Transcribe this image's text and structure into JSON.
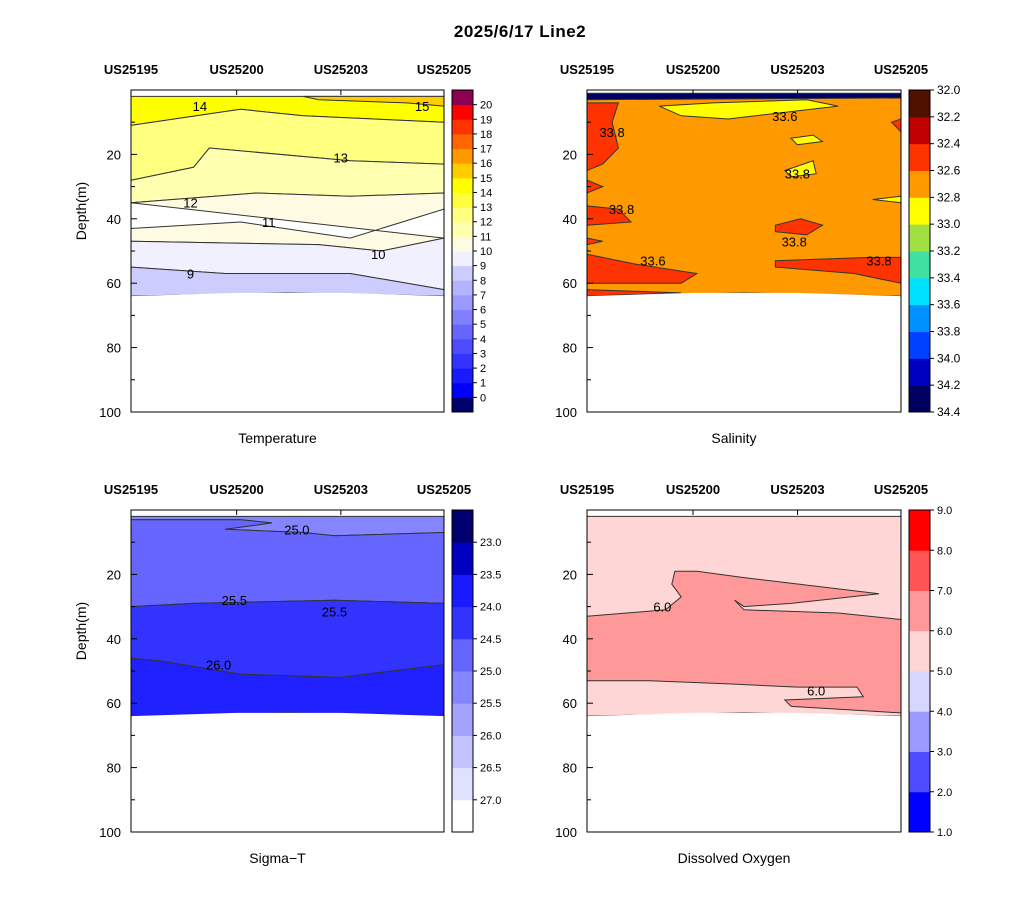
{
  "page_title": "2025/6/17  Line2",
  "chart_data": [
    {
      "type": "contour",
      "title": "Temperature",
      "ylabel": "Depth(m)",
      "ylim": [
        100,
        0
      ],
      "yticks": [
        20,
        40,
        60,
        80,
        100
      ],
      "stations": [
        "US25195",
        "US25200",
        "US25203",
        "US25205"
      ],
      "bottom_depth_m": [
        64,
        63,
        63,
        64
      ],
      "colorbar": {
        "levels": [
          0,
          1,
          2,
          3,
          4,
          5,
          6,
          7,
          8,
          9,
          10,
          11,
          12,
          13,
          14,
          15,
          16,
          17,
          18,
          19,
          20
        ],
        "tick_labels": [
          "0",
          "1",
          "2",
          "3",
          "4",
          "5",
          "6",
          "7",
          "8",
          "9",
          "10",
          "11",
          "12",
          "13",
          "14",
          "15",
          "16",
          "17",
          "18",
          "19",
          "20"
        ],
        "colors": [
          "#00006e",
          "#0000ff",
          "#1a1aff",
          "#3333ff",
          "#4d4dff",
          "#6666ff",
          "#8080ff",
          "#9999ff",
          "#b3b3ff",
          "#ccccff",
          "#f0f0ff",
          "#fffbe3",
          "#ffffb0",
          "#ffff80",
          "#ffff40",
          "#ffff00",
          "#ffcc00",
          "#ff9900",
          "#ff6600",
          "#ff3300",
          "#ff0000",
          "#8b0050"
        ]
      },
      "contour_labels": [
        "14",
        "15",
        "13",
        "12",
        "11",
        "10",
        "9"
      ]
    },
    {
      "type": "contour",
      "title": "Salinity",
      "ylabel": "",
      "ylim": [
        100,
        0
      ],
      "yticks": [
        20,
        40,
        60,
        80,
        100
      ],
      "stations": [
        "US25195",
        "US25200",
        "US25203",
        "US25205"
      ],
      "bottom_depth_m": [
        64,
        63,
        63,
        64
      ],
      "colorbar": {
        "levels": [
          32.0,
          32.2,
          32.4,
          32.6,
          32.8,
          33.0,
          33.2,
          33.4,
          33.6,
          33.8,
          34.0,
          34.2,
          34.4
        ],
        "tick_labels": [
          "32.0",
          "32.2",
          "32.4",
          "32.6",
          "32.8",
          "33.0",
          "33.2",
          "33.4",
          "33.6",
          "33.8",
          "34.0",
          "34.2",
          "34.4"
        ],
        "colors": [
          "#000060",
          "#0000c0",
          "#0040ff",
          "#0090ff",
          "#00e0ff",
          "#40e0a0",
          "#a0e040",
          "#ffff00",
          "#ff9900",
          "#ff3300",
          "#c00000",
          "#501000"
        ]
      },
      "contour_labels": [
        "33.6",
        "33.8",
        "33.8",
        "33.6",
        "33.8",
        "33.8",
        "33.8"
      ]
    },
    {
      "type": "contour",
      "title": "Sigma−T",
      "ylabel": "Depth(m)",
      "ylim": [
        100,
        0
      ],
      "yticks": [
        20,
        40,
        60,
        80,
        100
      ],
      "stations": [
        "US25195",
        "US25200",
        "US25203",
        "US25205"
      ],
      "bottom_depth_m": [
        64,
        63,
        63,
        64
      ],
      "colorbar": {
        "levels": [
          23.0,
          23.5,
          24.0,
          24.5,
          25.0,
          25.5,
          26.0,
          26.5,
          27.0
        ],
        "tick_labels": [
          "23.0",
          "23.5",
          "24.0",
          "24.5",
          "25.0",
          "25.5",
          "26.0",
          "26.5",
          "27.0"
        ],
        "colors": [
          "#ffffff",
          "#e0e0ff",
          "#c2c2ff",
          "#a3a3ff",
          "#8585ff",
          "#6666ff",
          "#3333ff",
          "#1a1aff",
          "#0000c0",
          "#00006e"
        ]
      },
      "contour_labels": [
        "25.0",
        "25.5",
        "25.5",
        "26.0"
      ]
    },
    {
      "type": "contour",
      "title": "Dissolved Oxygen",
      "ylabel": "",
      "ylim": [
        100,
        0
      ],
      "yticks": [
        20,
        40,
        60,
        80,
        100
      ],
      "stations": [
        "US25195",
        "US25200",
        "US25203",
        "US25205"
      ],
      "bottom_depth_m": [
        64,
        63,
        63,
        64
      ],
      "colorbar": {
        "levels": [
          1.0,
          2.0,
          3.0,
          4.0,
          5.0,
          6.0,
          7.0,
          8.0,
          9.0
        ],
        "tick_labels": [
          "1.0",
          "2.0",
          "3.0",
          "4.0",
          "5.0",
          "6.0",
          "7.0",
          "8.0",
          "9.0"
        ],
        "colors": [
          "#0000ff",
          "#4d4dff",
          "#9999ff",
          "#d6d6ff",
          "#ffd6d6",
          "#ff9999",
          "#ff5555",
          "#ff0000"
        ]
      },
      "contour_labels": [
        "6.0",
        "6.0"
      ]
    }
  ]
}
